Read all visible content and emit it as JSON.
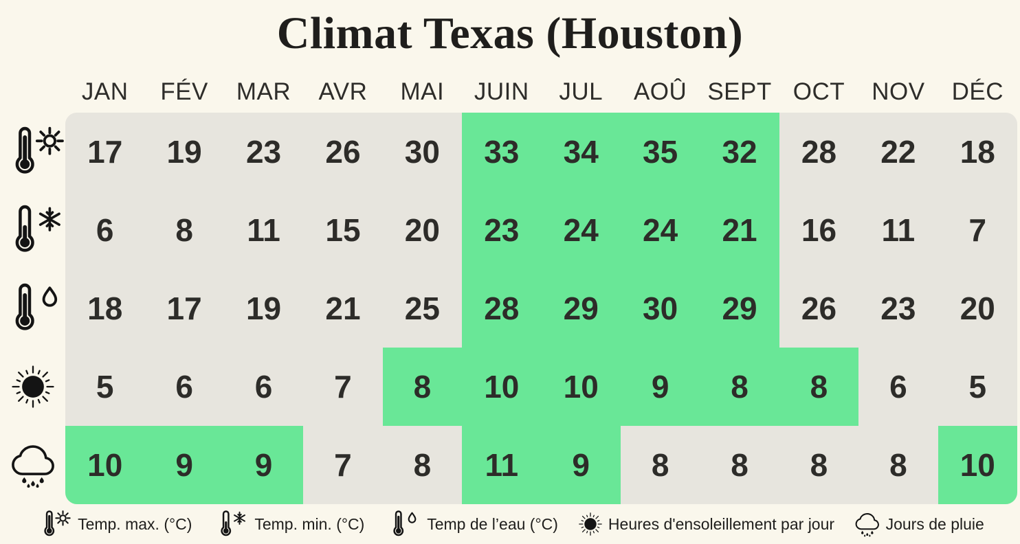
{
  "chart_data": {
    "type": "table",
    "title": "Climat Texas (Houston)",
    "categories": [
      "JAN",
      "FÉV",
      "MAR",
      "AVR",
      "MAI",
      "JUIN",
      "JUL",
      "AOÛ",
      "SEPT",
      "OCT",
      "NOV",
      "DÉC"
    ],
    "series": [
      {
        "id": "temp-max",
        "name": "Temp. max. (°C)",
        "icon": "thermometer-sun-icon",
        "values": [
          17,
          19,
          23,
          26,
          30,
          33,
          34,
          35,
          32,
          28,
          22,
          18
        ],
        "highlighted_columns": [
          5,
          6,
          7,
          8
        ]
      },
      {
        "id": "temp-min",
        "name": "Temp. min. (°C)",
        "icon": "thermometer-snowflake-icon",
        "values": [
          6,
          8,
          11,
          15,
          20,
          23,
          24,
          24,
          21,
          16,
          11,
          7
        ],
        "highlighted_columns": [
          5,
          6,
          7,
          8
        ]
      },
      {
        "id": "water-temp",
        "name": "Temp de l’eau (°C)",
        "icon": "thermometer-drop-icon",
        "values": [
          18,
          17,
          19,
          21,
          25,
          28,
          29,
          30,
          29,
          26,
          23,
          20
        ],
        "highlighted_columns": [
          5,
          6,
          7,
          8
        ]
      },
      {
        "id": "sunshine-hours",
        "name": "Heures d'ensoleillement par jour",
        "icon": "sun-icon",
        "values": [
          5,
          6,
          6,
          7,
          8,
          10,
          10,
          9,
          8,
          8,
          6,
          5
        ],
        "highlighted_columns": [
          4,
          5,
          6,
          7,
          8,
          9
        ]
      },
      {
        "id": "rain-days",
        "name": "Jours de pluie",
        "icon": "rain-cloud-icon",
        "values": [
          10,
          9,
          9,
          7,
          8,
          11,
          9,
          8,
          8,
          8,
          8,
          10
        ],
        "highlighted_columns": [
          0,
          1,
          2,
          5,
          6,
          11
        ]
      }
    ],
    "colors": {
      "background": "#faf7ec",
      "cell": "#e7e5de",
      "highlight": "#69e797",
      "text": "#2d2c29"
    },
    "legend_position": "bottom",
    "grid": false
  }
}
